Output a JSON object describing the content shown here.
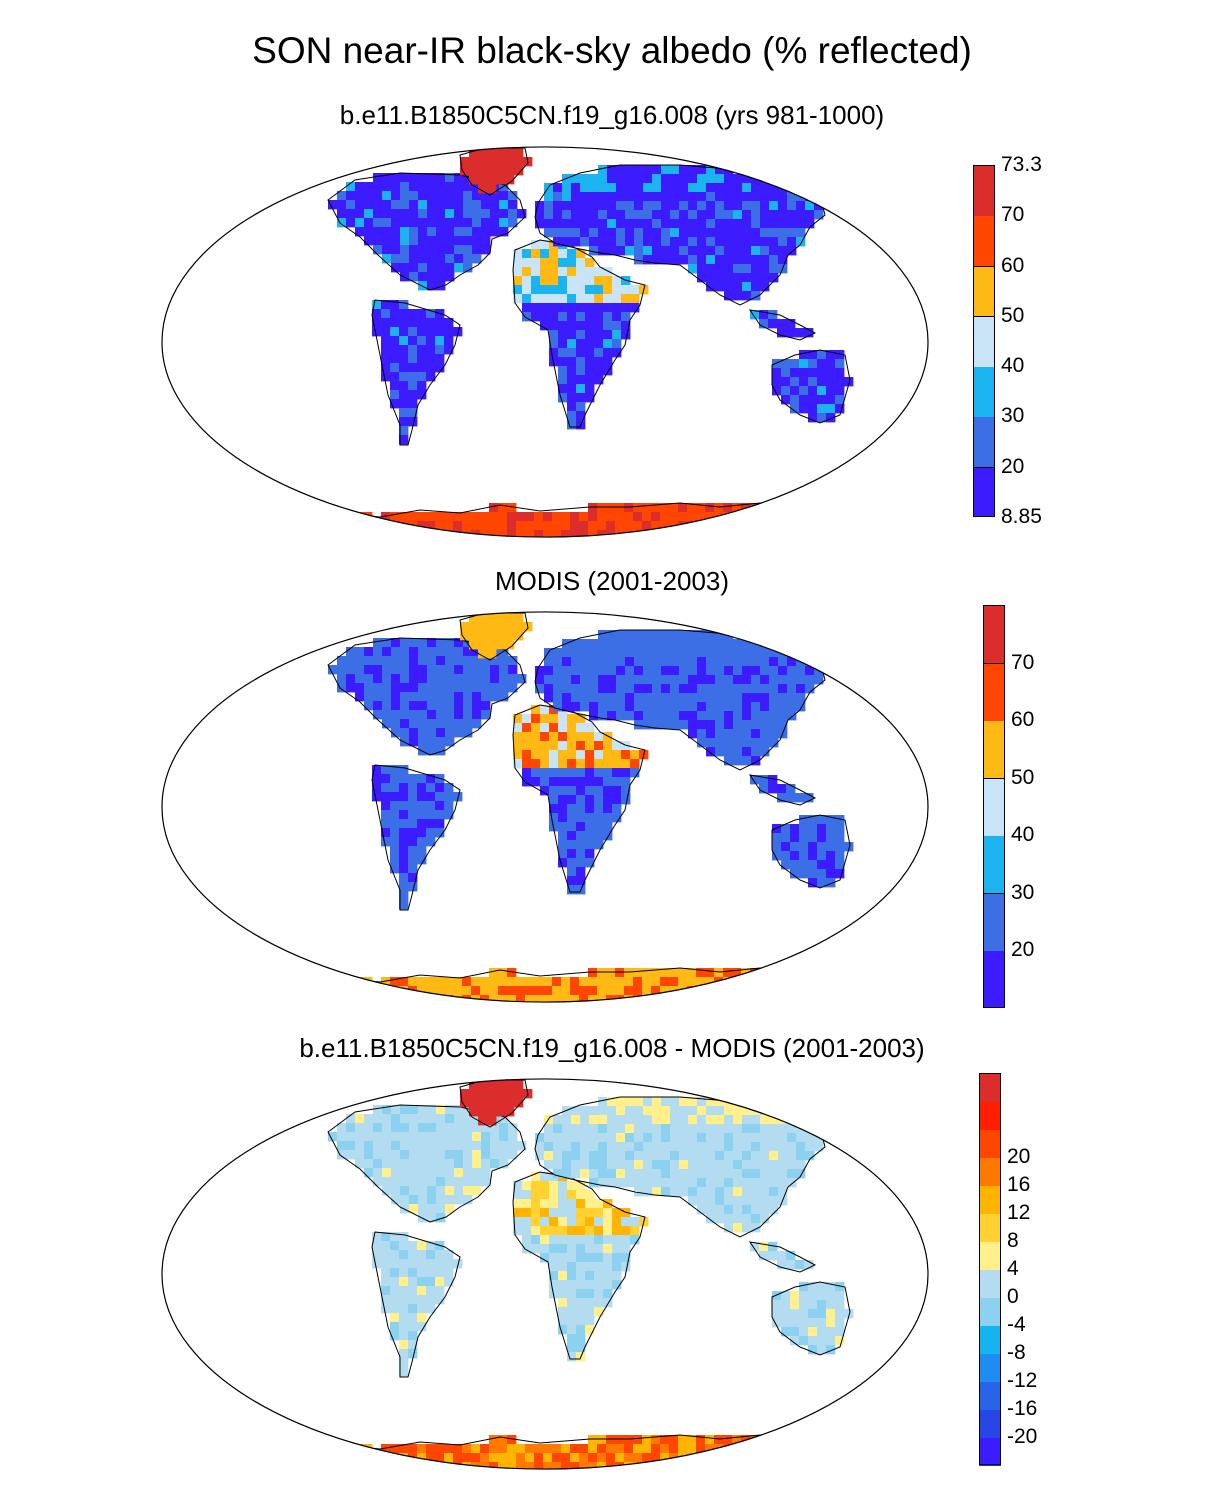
{
  "title": "SON near-IR black-sky albedo (% reflected)",
  "panels": [
    {
      "title": "b.e11.B1850C5CN.f19_g16.008 (yrs 981-1000)",
      "colorbar": {
        "colors": [
          "#3c1cff",
          "#3c6ee6",
          "#1cb4f0",
          "#c8e4f6",
          "#ffb914",
          "#ff4600",
          "#dc2d2d"
        ],
        "labels": [
          "8.85",
          "20",
          "30",
          "40",
          "50",
          "60",
          "70",
          "73.3"
        ]
      }
    },
    {
      "title": "MODIS (2001-2003)",
      "colorbar": {
        "colors": [
          "#3c1cff",
          "#3c6ee6",
          "#1cb4f0",
          "#c8e4f6",
          "#ffb914",
          "#ff4600",
          "#dc2d2d"
        ],
        "labels": [
          "20",
          "30",
          "40",
          "50",
          "60",
          "70"
        ]
      }
    },
    {
      "title": "b.e11.B1850C5CN.f19_g16.008 - MODIS (2001-2003)",
      "colorbar": {
        "colors": [
          "#3c1cff",
          "#2846e6",
          "#2864e6",
          "#1e8cf0",
          "#14b4f0",
          "#8cd2f0",
          "#b4dcf0",
          "#fff08c",
          "#ffd232",
          "#ffb400",
          "#ff7800",
          "#ff4600",
          "#ff1e00",
          "#dc2d2d"
        ],
        "labels": [
          "-20",
          "-16",
          "-12",
          "-8",
          "-4",
          "0",
          "4",
          "8",
          "12",
          "16",
          "20"
        ]
      }
    }
  ]
}
